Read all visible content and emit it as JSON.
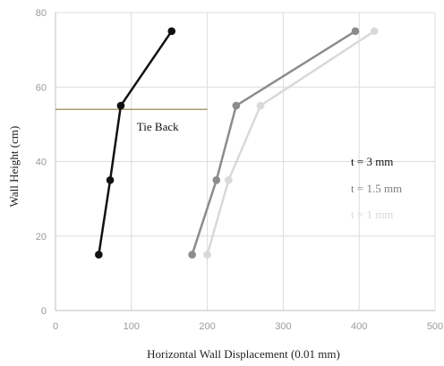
{
  "chart_data": {
    "type": "line",
    "xlabel": "Horizontal Wall Displacement (0.01 mm)",
    "ylabel": "Wall  Height (cm)",
    "xlim": [
      0,
      500
    ],
    "ylim": [
      0,
      80
    ],
    "x_ticks": [
      0,
      100,
      200,
      300,
      400,
      500
    ],
    "y_ticks": [
      0,
      20,
      40,
      60,
      80
    ],
    "grid": "vertical and horizontal",
    "legend_placement": "right",
    "series": [
      {
        "name": "t = 1 mm",
        "color": "#d9d9d9",
        "points": [
          [
            200,
            15
          ],
          [
            228,
            35
          ],
          [
            270,
            55
          ],
          [
            420,
            75
          ]
        ]
      },
      {
        "name": "t = 1.5 mm",
        "color": "#8c8c8c",
        "points": [
          [
            180,
            15
          ],
          [
            212,
            35
          ],
          [
            238,
            55
          ],
          [
            395,
            75
          ]
        ]
      },
      {
        "name": "t = 3 mm",
        "color": "#111111",
        "points": [
          [
            57,
            15
          ],
          [
            72,
            35
          ],
          [
            86,
            55
          ],
          [
            153,
            75
          ]
        ]
      }
    ],
    "legend": [
      {
        "label": "t = 3 mm",
        "color": "#111111"
      },
      {
        "label": "t = 1.5 mm",
        "color": "#7f7f7f"
      },
      {
        "label": "t = 1 mm",
        "color": "#d9d9d9"
      }
    ],
    "reference_line": {
      "label": "Tie Back",
      "y": 54,
      "x_range": [
        0,
        200
      ],
      "color": "#a89b6e"
    }
  }
}
